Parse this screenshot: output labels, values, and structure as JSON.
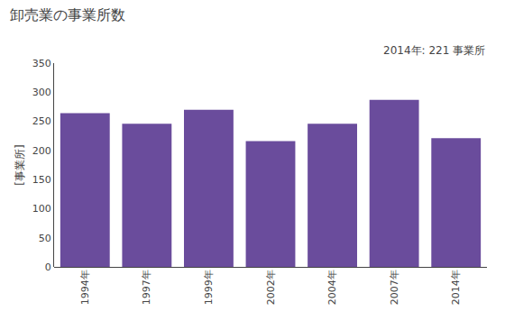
{
  "chart_data": {
    "type": "bar",
    "title": "卸売業の事業所数",
    "ylabel": "[事業所]",
    "annotation": "2014年: 221 事業所",
    "categories": [
      "1994年",
      "1997年",
      "1999年",
      "2002年",
      "2004年",
      "2007年",
      "2014年"
    ],
    "values": [
      264,
      246,
      270,
      216,
      246,
      287,
      221
    ],
    "color": "#6a4c9c",
    "ylim": [
      0,
      350
    ],
    "yticks": [
      0,
      50,
      100,
      150,
      200,
      250,
      300,
      350
    ],
    "grid": false
  }
}
